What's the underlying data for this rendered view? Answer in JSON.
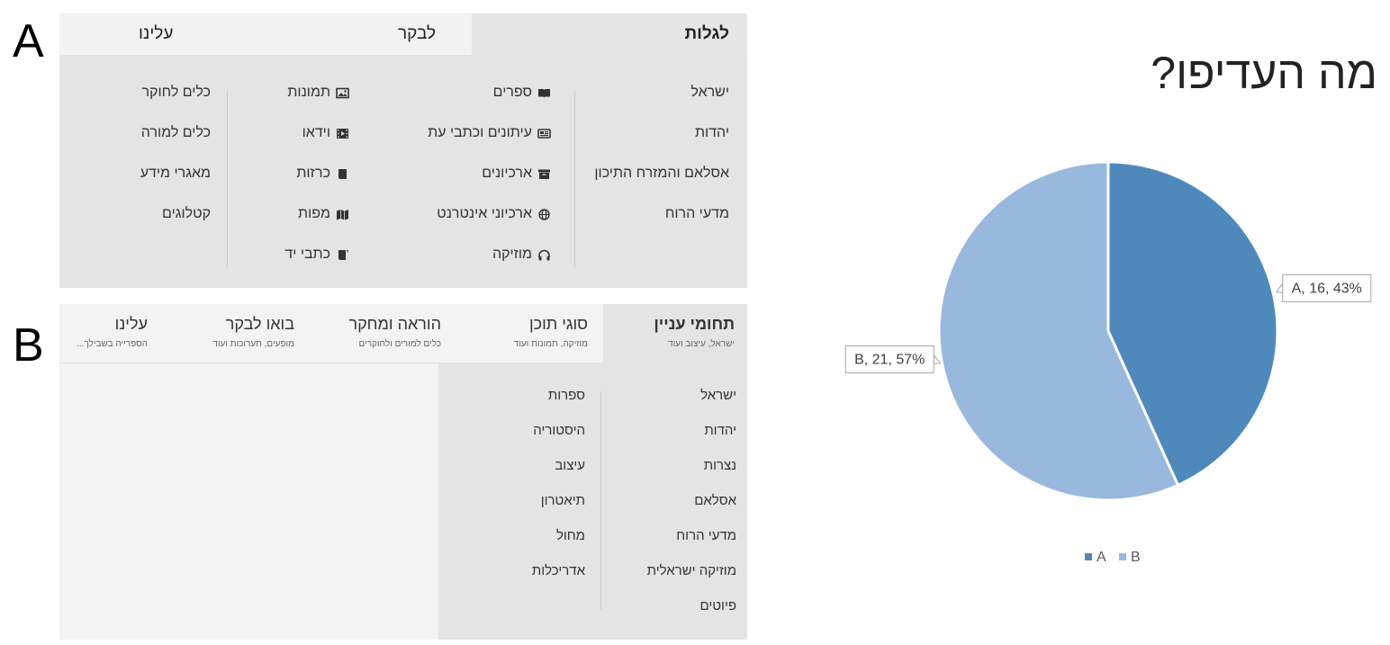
{
  "labels": {
    "a": "A",
    "b": "B"
  },
  "panel_a": {
    "tabs": [
      {
        "label": "לגלות",
        "active": true
      },
      {
        "label": "לבקר",
        "active": false
      },
      {
        "label": "עלינו",
        "active": false
      }
    ],
    "col1": [
      "ישראל",
      "יהדות",
      "אסלאם והמזרח התיכון",
      "מדעי הרוח"
    ],
    "col2": [
      {
        "label": "ספרים",
        "icon": "book-icon"
      },
      {
        "label": "עיתונים וכתבי עת",
        "icon": "newspaper-icon"
      },
      {
        "label": "ארכיונים",
        "icon": "archive-box-icon"
      },
      {
        "label": "ארכיוני אינטרנט",
        "icon": "globe-icon"
      },
      {
        "label": "מוזיקה",
        "icon": "headphones-icon"
      }
    ],
    "col3": [
      {
        "label": "תמונות",
        "icon": "image-icon"
      },
      {
        "label": "וידאו",
        "icon": "film-icon"
      },
      {
        "label": "כרזות",
        "icon": "poster-icon"
      },
      {
        "label": "מפות",
        "icon": "map-icon"
      },
      {
        "label": "כתבי יד",
        "icon": "manuscript-icon"
      }
    ],
    "col4": [
      "כלים לחוקר",
      "כלים למורה",
      "מאגרי מידע",
      "קטלוגים"
    ]
  },
  "panel_b": {
    "tabs": [
      {
        "title": "תחומי עניין",
        "sub": "ישראל, עיצוב ועוד",
        "active": true
      },
      {
        "title": "סוגי תוכן",
        "sub": "מוזיקה, תמונות ועוד",
        "active": false
      },
      {
        "title": "הוראה ומחקר",
        "sub": "כלים למורים ולחוקרים",
        "active": false
      },
      {
        "title": "בואו לבקר",
        "sub": "מופעים, תערוכות ועוד",
        "active": false
      },
      {
        "title": "עלינו",
        "sub": "הספרייה בשבילך...",
        "active": false
      }
    ],
    "col1": [
      "ישראל",
      "יהדות",
      "נצרות",
      "אסלאם",
      "מדעי הרוח",
      "מוזיקה ישראלית",
      "פיוטים"
    ],
    "col2": [
      "ספרות",
      "היסטוריה",
      "עיצוב",
      "תיאטרון",
      "מחול",
      "אדריכלות"
    ]
  },
  "colors": {
    "slice_a": "#4f89bc",
    "slice_b": "#98b8de",
    "panel_bg": "#e4e4e4"
  },
  "chart_data": {
    "type": "pie",
    "title": "מה העדיפו?",
    "categories": [
      "A",
      "B"
    ],
    "values": [
      16,
      21
    ],
    "percentages": [
      43,
      57
    ],
    "data_labels": [
      "A, 16, 43%",
      "B, 21, 57%"
    ],
    "legend": [
      "A",
      "B"
    ],
    "legend_position": "bottom"
  }
}
